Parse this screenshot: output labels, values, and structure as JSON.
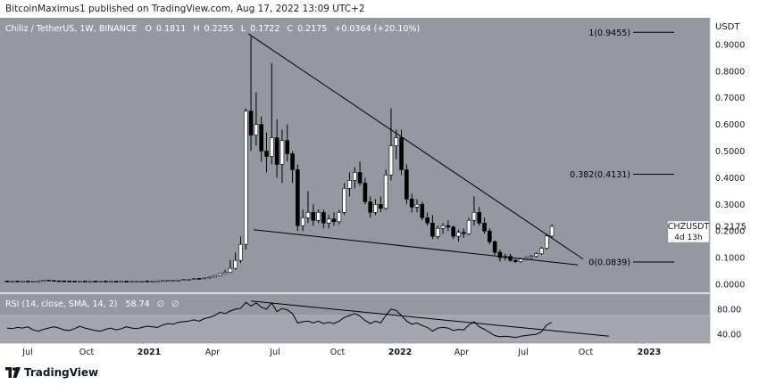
{
  "header": {
    "publisher_line": "BitcoinMaximus1 published on TradingView.com, Aug 17, 2022 13:09 UTC+2"
  },
  "footer": {
    "brand": "TradingView"
  },
  "colors": {
    "background": "#9598a1",
    "rsi_band": "#a3a6ae",
    "axis_bg": "#ffffff",
    "up": "#ffffff",
    "down": "#000000",
    "line": "#000000"
  },
  "chart_data": [
    {
      "type": "candlestick",
      "title": "Chiliz / TetherUS, 1W, BINANCE",
      "ohlc_label": {
        "o_label": "O",
        "o": "0.1811",
        "h_label": "H",
        "h": "0.2255",
        "l_label": "L",
        "l": "0.1722",
        "c_label": "C",
        "c": "0.2175",
        "change": "+0.0364 (+20.10%)"
      },
      "axis_unit": "USDT",
      "ylim": [
        -0.03,
        1.0
      ],
      "y_ticks": [
        "0.9000",
        "0.8000",
        "0.7000",
        "0.6000",
        "0.5000",
        "0.4000",
        "0.3000",
        "0.2000",
        "0.1000",
        "0.0000"
      ],
      "x_ticks": [
        "Jul",
        "Oct",
        "2021",
        "Apr",
        "Jul",
        "Oct",
        "2022",
        "Apr",
        "Jul",
        "Oct",
        "2023"
      ],
      "symbol_tag": "CHZUSDT",
      "last_price": "0.2175",
      "countdown": "4d 13h",
      "fib_levels": [
        {
          "label": "1(0.9455)",
          "value": 0.9455
        },
        {
          "label": "0.382(0.4131)",
          "value": 0.4131
        },
        {
          "label": "0(0.0839)",
          "value": 0.0839
        }
      ],
      "trendlines": [
        {
          "from": [
            46.5,
            0.94
          ],
          "to": [
            111,
            0.095
          ]
        },
        {
          "from": [
            47.5,
            0.205
          ],
          "to": [
            110,
            0.073
          ]
        }
      ],
      "candles": [
        [
          0.0125,
          0.013,
          0.0118,
          0.0122
        ],
        [
          0.0122,
          0.0128,
          0.0118,
          0.0125
        ],
        [
          0.0125,
          0.013,
          0.012,
          0.0121
        ],
        [
          0.0121,
          0.0127,
          0.0117,
          0.0124
        ],
        [
          0.0124,
          0.0129,
          0.0119,
          0.012
        ],
        [
          0.012,
          0.0126,
          0.0116,
          0.0123
        ],
        [
          0.0123,
          0.0135,
          0.012,
          0.013
        ],
        [
          0.013,
          0.0165,
          0.0125,
          0.016
        ],
        [
          0.016,
          0.0175,
          0.014,
          0.0145
        ],
        [
          0.0145,
          0.015,
          0.0128,
          0.0132
        ],
        [
          0.0132,
          0.014,
          0.0125,
          0.013
        ],
        [
          0.013,
          0.0136,
          0.0122,
          0.0125
        ],
        [
          0.0125,
          0.013,
          0.0118,
          0.0123
        ],
        [
          0.0123,
          0.0128,
          0.0117,
          0.012
        ],
        [
          0.012,
          0.0125,
          0.0115,
          0.0122
        ],
        [
          0.0122,
          0.0127,
          0.0116,
          0.0118
        ],
        [
          0.0118,
          0.0124,
          0.0113,
          0.0121
        ],
        [
          0.0121,
          0.0126,
          0.0115,
          0.0117
        ],
        [
          0.0117,
          0.0123,
          0.0112,
          0.012
        ],
        [
          0.012,
          0.0125,
          0.0114,
          0.0116
        ],
        [
          0.0116,
          0.0122,
          0.0111,
          0.0119
        ],
        [
          0.0119,
          0.0124,
          0.0113,
          0.0115
        ],
        [
          0.0115,
          0.0121,
          0.011,
          0.0118
        ],
        [
          0.0118,
          0.0123,
          0.0112,
          0.0114
        ],
        [
          0.0114,
          0.012,
          0.0109,
          0.0117
        ],
        [
          0.0117,
          0.0123,
          0.0112,
          0.0119
        ],
        [
          0.0119,
          0.0128,
          0.0115,
          0.0125
        ],
        [
          0.0125,
          0.0132,
          0.0118,
          0.0121
        ],
        [
          0.0121,
          0.0126,
          0.0115,
          0.0124
        ],
        [
          0.0124,
          0.0135,
          0.012,
          0.013
        ],
        [
          0.013,
          0.0145,
          0.0125,
          0.014
        ],
        [
          0.014,
          0.0155,
          0.0135,
          0.015
        ],
        [
          0.015,
          0.0165,
          0.014,
          0.0155
        ],
        [
          0.0155,
          0.017,
          0.0145,
          0.016
        ],
        [
          0.016,
          0.019,
          0.0155,
          0.018
        ],
        [
          0.018,
          0.02,
          0.0165,
          0.019
        ],
        [
          0.019,
          0.023,
          0.018,
          0.022
        ],
        [
          0.022,
          0.024,
          0.02,
          0.0215
        ],
        [
          0.0215,
          0.025,
          0.02,
          0.024
        ],
        [
          0.024,
          0.028,
          0.0225,
          0.027
        ],
        [
          0.027,
          0.034,
          0.026,
          0.032
        ],
        [
          0.032,
          0.042,
          0.03,
          0.04
        ],
        [
          0.04,
          0.055,
          0.038,
          0.045
        ],
        [
          0.045,
          0.09,
          0.042,
          0.06
        ],
        [
          0.06,
          0.12,
          0.055,
          0.09
        ],
        [
          0.09,
          0.18,
          0.08,
          0.15
        ],
        [
          0.15,
          0.66,
          0.13,
          0.65
        ],
        [
          0.65,
          0.93,
          0.5,
          0.56
        ],
        [
          0.56,
          0.72,
          0.52,
          0.6
        ],
        [
          0.6,
          0.63,
          0.46,
          0.5
        ],
        [
          0.5,
          0.57,
          0.42,
          0.48
        ],
        [
          0.48,
          0.83,
          0.45,
          0.55
        ],
        [
          0.55,
          0.62,
          0.4,
          0.45
        ],
        [
          0.45,
          0.58,
          0.38,
          0.54
        ],
        [
          0.54,
          0.6,
          0.46,
          0.49
        ],
        [
          0.49,
          0.5,
          0.38,
          0.43
        ],
        [
          0.43,
          0.45,
          0.2,
          0.22
        ],
        [
          0.22,
          0.28,
          0.2,
          0.25
        ],
        [
          0.25,
          0.35,
          0.23,
          0.27
        ],
        [
          0.27,
          0.3,
          0.22,
          0.24
        ],
        [
          0.24,
          0.28,
          0.23,
          0.27
        ],
        [
          0.27,
          0.28,
          0.21,
          0.23
        ],
        [
          0.23,
          0.26,
          0.21,
          0.245
        ],
        [
          0.245,
          0.27,
          0.22,
          0.235
        ],
        [
          0.235,
          0.28,
          0.225,
          0.27
        ],
        [
          0.27,
          0.38,
          0.26,
          0.36
        ],
        [
          0.36,
          0.42,
          0.33,
          0.39
        ],
        [
          0.39,
          0.44,
          0.36,
          0.42
        ],
        [
          0.42,
          0.46,
          0.37,
          0.38
        ],
        [
          0.38,
          0.4,
          0.3,
          0.31
        ],
        [
          0.31,
          0.33,
          0.25,
          0.27
        ],
        [
          0.27,
          0.32,
          0.26,
          0.3
        ],
        [
          0.3,
          0.33,
          0.27,
          0.285
        ],
        [
          0.285,
          0.43,
          0.28,
          0.41
        ],
        [
          0.41,
          0.66,
          0.39,
          0.52
        ],
        [
          0.52,
          0.58,
          0.47,
          0.55
        ],
        [
          0.55,
          0.58,
          0.41,
          0.43
        ],
        [
          0.43,
          0.45,
          0.3,
          0.32
        ],
        [
          0.32,
          0.34,
          0.27,
          0.29
        ],
        [
          0.29,
          0.32,
          0.27,
          0.3
        ],
        [
          0.3,
          0.31,
          0.24,
          0.25
        ],
        [
          0.25,
          0.27,
          0.22,
          0.23
        ],
        [
          0.23,
          0.26,
          0.17,
          0.18
        ],
        [
          0.18,
          0.22,
          0.17,
          0.21
        ],
        [
          0.21,
          0.23,
          0.19,
          0.22
        ],
        [
          0.22,
          0.24,
          0.2,
          0.215
        ],
        [
          0.215,
          0.22,
          0.17,
          0.18
        ],
        [
          0.18,
          0.205,
          0.16,
          0.195
        ],
        [
          0.195,
          0.21,
          0.175,
          0.19
        ],
        [
          0.19,
          0.25,
          0.185,
          0.24
        ],
        [
          0.24,
          0.33,
          0.22,
          0.27
        ],
        [
          0.27,
          0.29,
          0.22,
          0.23
        ],
        [
          0.23,
          0.25,
          0.19,
          0.2
        ],
        [
          0.2,
          0.21,
          0.15,
          0.16
        ],
        [
          0.16,
          0.165,
          0.11,
          0.12
        ],
        [
          0.12,
          0.13,
          0.085,
          0.1
        ],
        [
          0.1,
          0.115,
          0.09,
          0.105
        ],
        [
          0.105,
          0.115,
          0.085,
          0.09
        ],
        [
          0.09,
          0.095,
          0.08,
          0.085
        ],
        [
          0.085,
          0.1,
          0.08,
          0.095
        ],
        [
          0.095,
          0.105,
          0.09,
          0.1
        ],
        [
          0.1,
          0.11,
          0.095,
          0.105
        ],
        [
          0.105,
          0.12,
          0.1,
          0.115
        ],
        [
          0.115,
          0.14,
          0.11,
          0.135
        ],
        [
          0.135,
          0.19,
          0.13,
          0.1811
        ],
        [
          0.1811,
          0.2255,
          0.1722,
          0.2175
        ]
      ]
    },
    {
      "type": "line",
      "title": "RSI (14, close, SMA, 14, 2)",
      "value_label": "58.74",
      "extra_labels": [
        "∅",
        "∅"
      ],
      "ylim": [
        26,
        104
      ],
      "band": [
        30,
        70
      ],
      "y_ticks": [
        "80.00",
        "40.00"
      ],
      "trendline": {
        "from": [
          47,
          93
        ],
        "to": [
          116,
          37
        ]
      },
      "values": [
        50,
        49,
        51,
        50,
        52,
        47,
        45,
        48,
        50,
        52,
        50,
        47,
        46,
        49,
        53,
        50,
        48,
        46,
        45,
        48,
        50,
        47,
        49,
        52,
        50,
        49,
        51,
        53,
        52,
        51,
        55,
        57,
        56,
        59,
        60,
        61,
        63,
        61,
        65,
        67,
        70,
        75,
        73,
        77,
        80,
        81,
        91,
        85,
        90,
        83,
        80,
        90,
        76,
        81,
        79,
        73,
        58,
        60,
        61,
        58,
        61,
        57,
        59,
        57,
        61,
        67,
        70,
        73,
        69,
        62,
        57,
        61,
        58,
        70,
        80,
        78,
        70,
        61,
        56,
        58,
        54,
        51,
        45,
        50,
        51,
        50,
        46,
        48,
        47,
        55,
        60,
        52,
        48,
        43,
        38,
        36,
        37,
        36,
        35,
        37,
        38,
        39,
        40,
        44,
        55,
        59
      ]
    }
  ]
}
